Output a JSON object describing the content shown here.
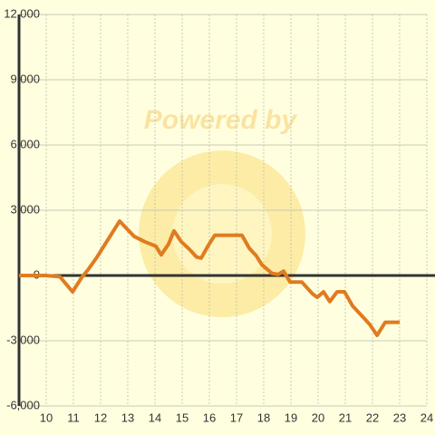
{
  "chart_data": {
    "type": "line",
    "watermark": "Powered by",
    "xlim": [
      9,
      24
    ],
    "xticks": [
      10,
      11,
      12,
      13,
      14,
      15,
      16,
      17,
      18,
      19,
      20,
      21,
      22,
      23,
      24
    ],
    "ylim": [
      -6000,
      12000
    ],
    "yticks": [
      {
        "value": -6000,
        "label": "-6,000"
      },
      {
        "value": -3000,
        "label": "-3,000"
      },
      0,
      {
        "value": 3000,
        "label": "3,000"
      },
      {
        "value": 6000,
        "label": "6,000"
      },
      {
        "value": 9000,
        "label": "9,000"
      },
      {
        "value": 12000,
        "label": "12,000"
      }
    ],
    "grid": true,
    "series": [
      {
        "color": "#e07b20",
        "x": [
          9.0,
          9.97,
          10.5,
          10.97,
          11.3,
          11.53,
          11.87,
          12.27,
          12.7,
          13.23,
          13.63,
          14.03,
          14.23,
          14.5,
          14.7,
          14.97,
          15.27,
          15.53,
          15.7,
          15.97,
          16.2,
          17.2,
          17.47,
          17.73,
          17.93,
          18.3,
          18.53,
          18.73,
          18.97,
          19.4,
          19.8,
          19.97,
          20.2,
          20.43,
          20.7,
          20.97,
          21.27,
          21.57,
          21.9,
          22.17,
          22.47,
          23.0
        ],
        "values": [
          0,
          0,
          -50,
          -750,
          -100,
          250,
          850,
          1650,
          2500,
          1800,
          1550,
          1350,
          950,
          1450,
          2050,
          1550,
          1200,
          850,
          800,
          1400,
          1850,
          1850,
          1250,
          900,
          500,
          100,
          50,
          200,
          -300,
          -300,
          -850,
          -1000,
          -750,
          -1200,
          -750,
          -750,
          -1400,
          -1800,
          -2250,
          -2750,
          -2150,
          -2150
        ]
      }
    ]
  }
}
